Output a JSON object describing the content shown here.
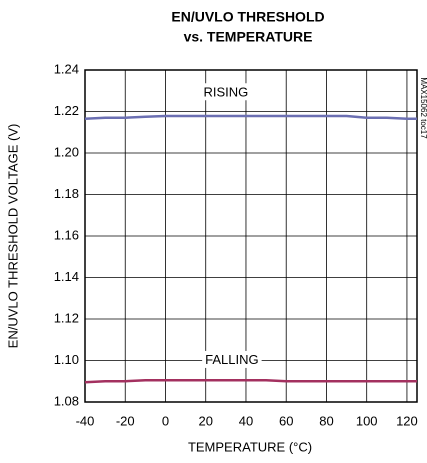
{
  "chart_data": {
    "type": "line",
    "title": "EN/UVLO THRESHOLD",
    "subtitle": "vs. TEMPERATURE",
    "x_label": "TEMPERATURE (°C)",
    "y_label": "EN/UVLO THRESHOLD VOLTAGE (V)",
    "side_note": "MAX15062 toc17",
    "x": [
      -40,
      -30,
      -20,
      -10,
      0,
      10,
      20,
      30,
      40,
      50,
      60,
      70,
      80,
      90,
      100,
      110,
      120,
      125
    ],
    "series": [
      {
        "name": "RISING",
        "color": "#6b6fb2",
        "label_x": 30,
        "label_y": 1.229,
        "values": [
          1.2165,
          1.217,
          1.217,
          1.2175,
          1.2178,
          1.2178,
          1.2178,
          1.2178,
          1.2178,
          1.2178,
          1.2178,
          1.2178,
          1.2178,
          1.2178,
          1.217,
          1.217,
          1.2165,
          1.2165
        ]
      },
      {
        "name": "FALLING",
        "color": "#a3305f",
        "label_x": 33,
        "label_y": 1.1,
        "values": [
          1.0895,
          1.09,
          1.09,
          1.0905,
          1.0905,
          1.0905,
          1.0905,
          1.0905,
          1.0905,
          1.0905,
          1.09,
          1.09,
          1.09,
          1.09,
          1.09,
          1.09,
          1.09,
          1.09
        ]
      }
    ],
    "xlim": [
      -40,
      125
    ],
    "xticks": [
      -40,
      -20,
      0,
      20,
      40,
      60,
      80,
      100,
      120
    ],
    "ylim": [
      1.08,
      1.24
    ],
    "yticks": [
      {
        "value": 1.08,
        "label": "1.08"
      },
      {
        "value": 1.1,
        "label": "1.10"
      },
      {
        "value": 1.12,
        "label": "1.12"
      },
      {
        "value": 1.14,
        "label": "1.14"
      },
      {
        "value": 1.16,
        "label": "1.16"
      },
      {
        "value": 1.18,
        "label": "1.18"
      },
      {
        "value": 1.2,
        "label": "1.20"
      },
      {
        "value": 1.22,
        "label": "1.22"
      },
      {
        "value": 1.24,
        "label": "1.24"
      }
    ],
    "grid": true
  }
}
